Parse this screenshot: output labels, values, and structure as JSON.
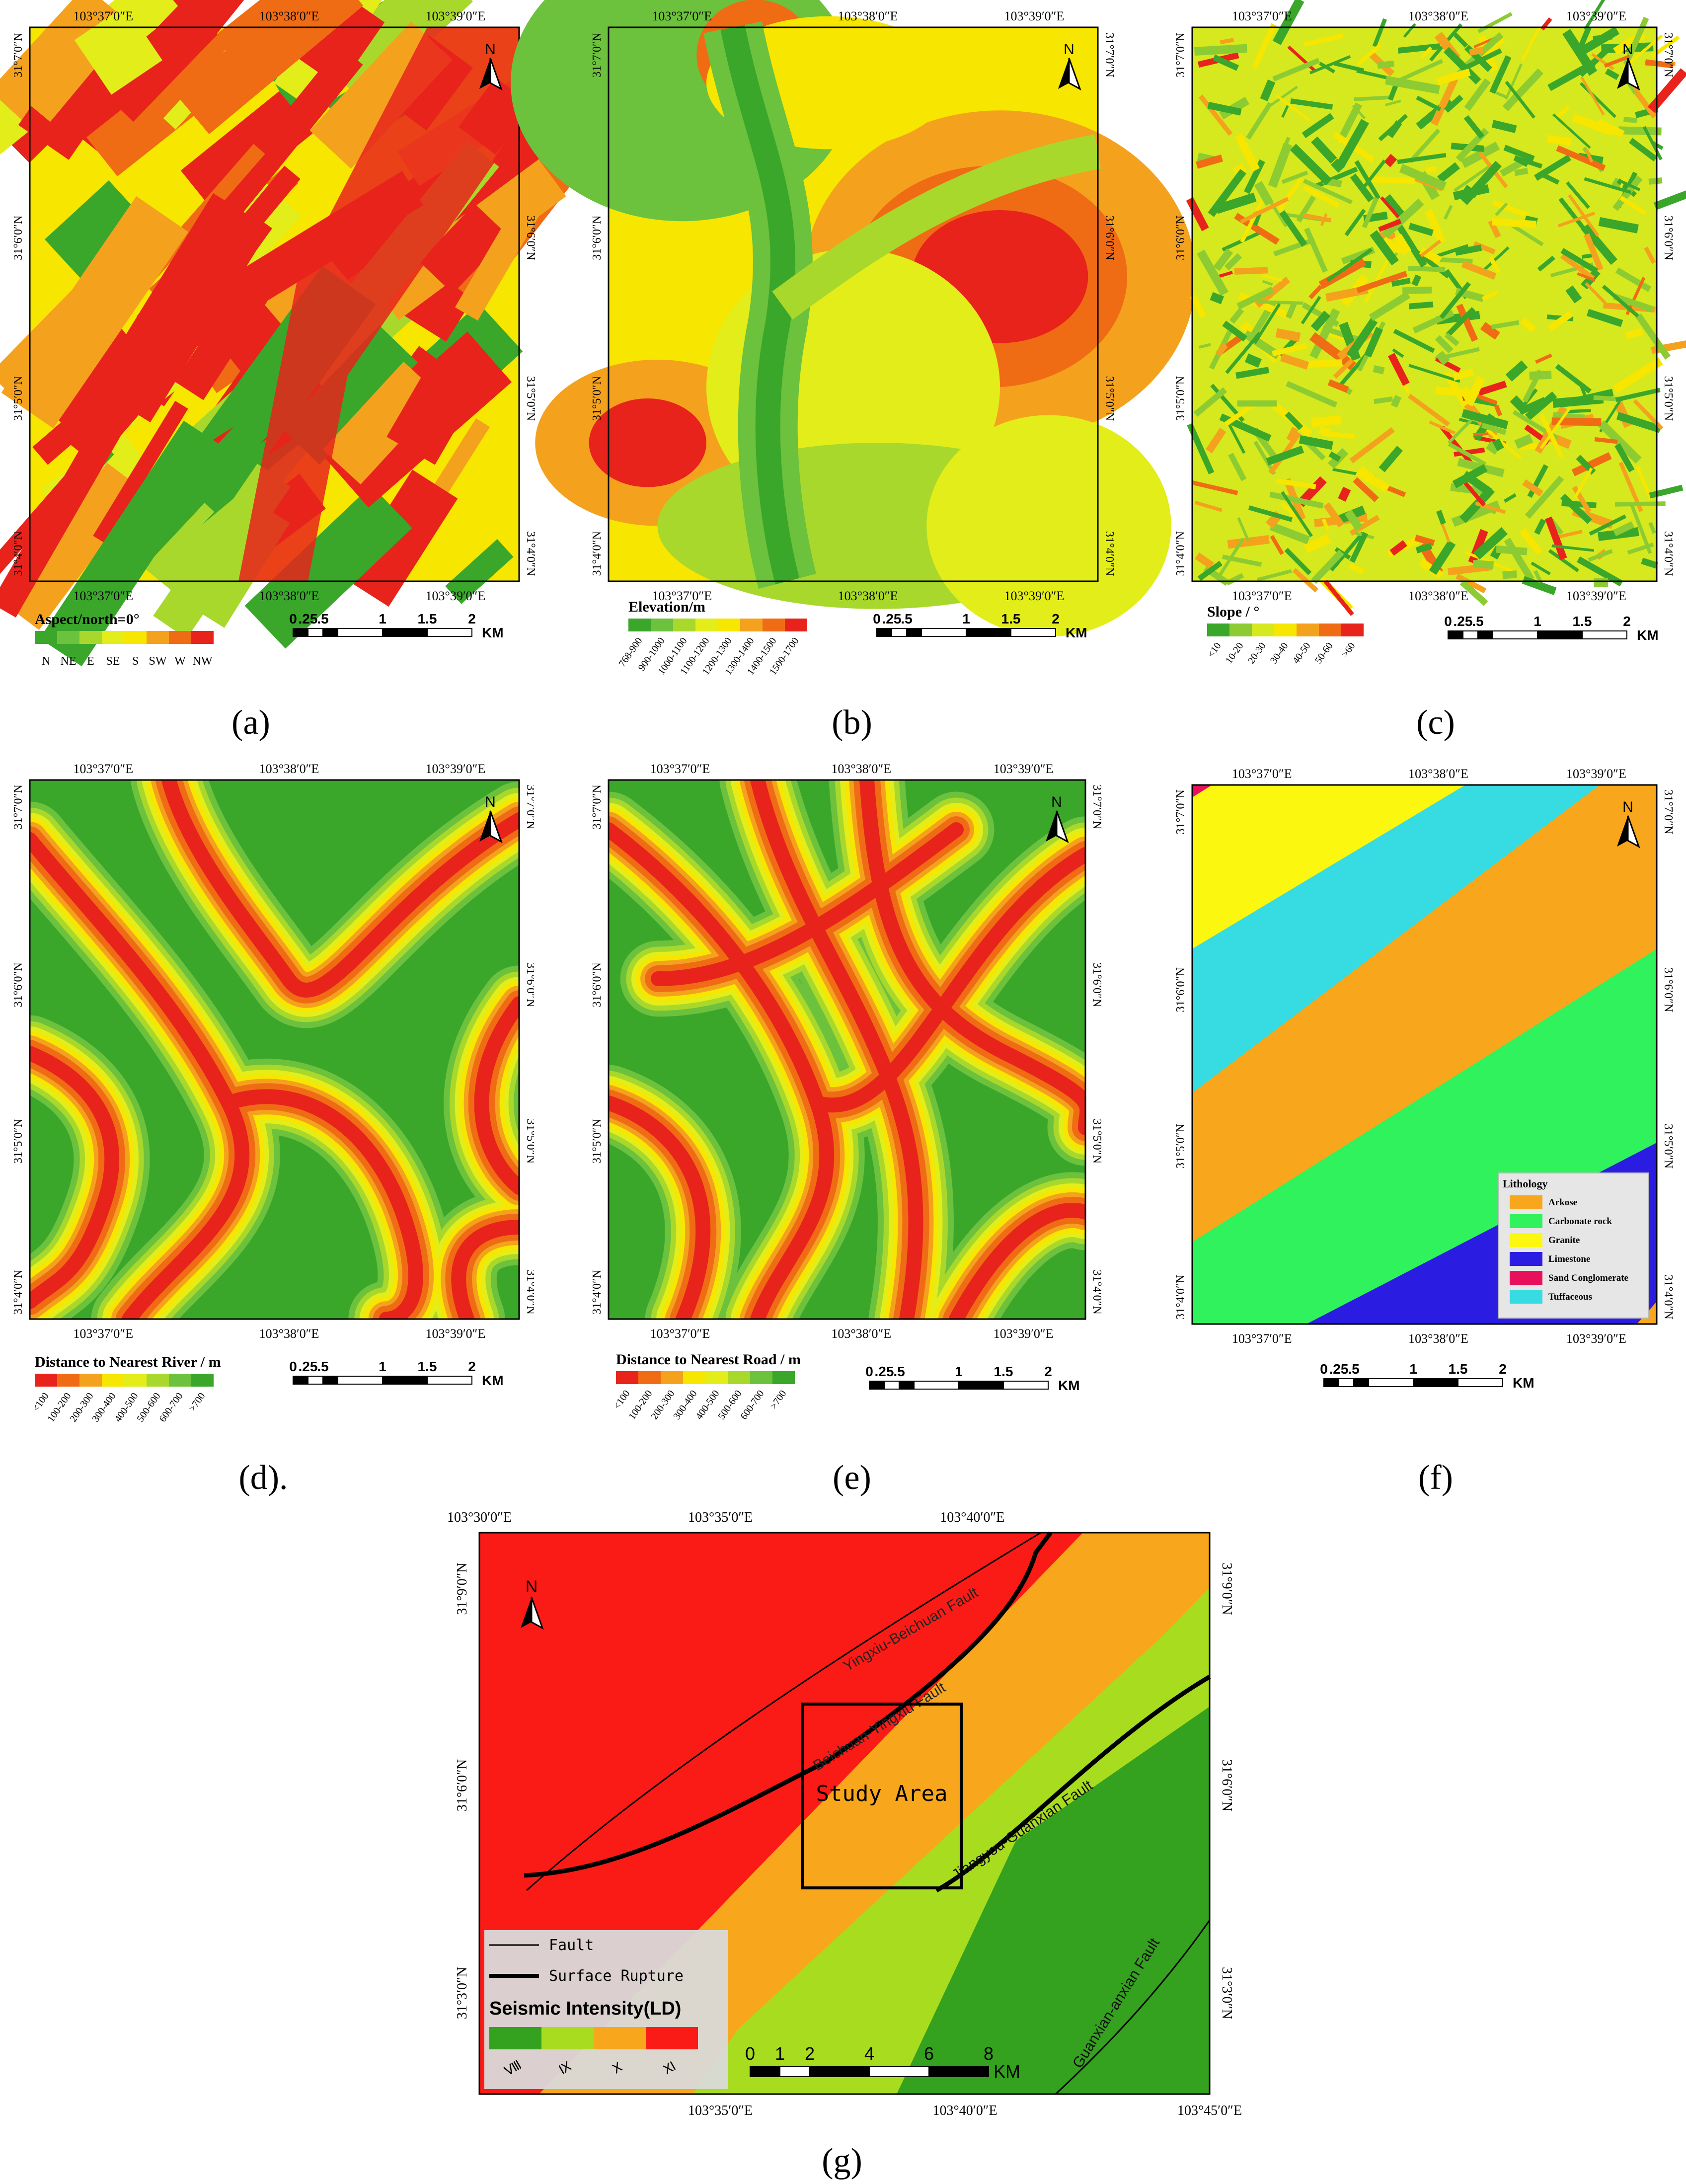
{
  "coords": {
    "lon_top": [
      "103°37′0″E",
      "103°38′0″E",
      "103°39′0″E"
    ],
    "lon_bottom": [
      "103°37′0″E",
      "103°38′0″E",
      "103°39′0″E"
    ],
    "lat": [
      "31°7′0″N",
      "31°6′0″N",
      "31°5′0″N",
      "31°4′0″N"
    ]
  },
  "north_label": "N",
  "scale": {
    "ticks": [
      "0",
      ".25",
      ".5",
      "1",
      "1.5",
      "2"
    ],
    "unit": "KM"
  },
  "panels": {
    "a": {
      "label": "(a)",
      "legend_title": "Aspect/north=0°",
      "classes": [
        "N",
        "NE",
        "E",
        "SE",
        "S",
        "SW",
        "W",
        "NW"
      ],
      "colors": [
        "#3aa72b",
        "#6cc13d",
        "#a8d82b",
        "#e2ed1a",
        "#f7e600",
        "#f4a21e",
        "#f06c14",
        "#e8231c"
      ]
    },
    "b": {
      "label": "(b)",
      "legend_title": "Elevation/m",
      "classes": [
        "768-900",
        "900-1000",
        "1000-1100",
        "1100-1200",
        "1200-1300",
        "1300-1400",
        "1400-1500",
        "1500-1700"
      ],
      "colors": [
        "#3aa72b",
        "#6cc13d",
        "#a8d82b",
        "#e2ed1a",
        "#f7e600",
        "#f4a21e",
        "#f06c14",
        "#e8231c"
      ]
    },
    "c": {
      "label": "(c)",
      "legend_title": "Slope / °",
      "classes": [
        "<10",
        "10-20",
        "20-30",
        "30-40",
        "40-50",
        "50-60",
        ">60"
      ],
      "colors": [
        "#3aa72b",
        "#8ccc32",
        "#d6e81e",
        "#f7e600",
        "#f4a21e",
        "#f06c14",
        "#e8231c"
      ]
    },
    "d": {
      "label": "(d).",
      "legend_title": "Distance to Nearest River / m",
      "classes": [
        "<100",
        "100-200",
        "200-300",
        "300-400",
        "400-500",
        "500-600",
        "600-700",
        ">700"
      ],
      "colors": [
        "#e8231c",
        "#f06c14",
        "#f4a21e",
        "#f7e600",
        "#e2ed1a",
        "#a8d82b",
        "#6cc13d",
        "#3aa72b"
      ]
    },
    "e": {
      "label": "(e)",
      "legend_title": "Distance to Nearest Road / m",
      "classes": [
        "<100",
        "100-200",
        "200-300",
        "300-400",
        "400-500",
        "500-600",
        "600-700",
        ">700"
      ],
      "colors": [
        "#e8231c",
        "#f06c14",
        "#f4a21e",
        "#f7e600",
        "#e2ed1a",
        "#a8d82b",
        "#6cc13d",
        "#3aa72b"
      ]
    },
    "f": {
      "label": "(f)",
      "legend_title": "Lithology",
      "classes": [
        "Arkose",
        "Carbonate rock",
        "Granite",
        "Limestone",
        "Sand Conglomerate",
        "Tuffaceous"
      ],
      "colors": [
        "#f8a61c",
        "#30f25c",
        "#fbf70e",
        "#2a1ce0",
        "#e8105a",
        "#37dbe2"
      ]
    },
    "g": {
      "label": "(g)",
      "lon_top": [
        "103°30′0″E",
        "103°35′0″E",
        "103°40′0″E"
      ],
      "lon_bottom": [
        "103°35′0″E",
        "103°40′0″E",
        "103°45′0″E"
      ],
      "lat": [
        "31°9′0″N",
        "31°6′0″N",
        "31°3′0″N"
      ],
      "faults": [
        "Yingxiu-Beichuan Fault",
        "Beichuan-Yingxiu Fault",
        "Jiangyou-Guanxian Fault",
        "Guanxian-anxian Fault"
      ],
      "study_area": "Study Area",
      "legend_fault": "Fault",
      "legend_rupture": "Surface Rupture",
      "legend_title": "Seismic Intensity(LD)",
      "classes": [
        "Ⅷ",
        "Ⅸ",
        "Ⅹ",
        "Ⅺ"
      ],
      "colors": [
        "#34a11f",
        "#a8dc1e",
        "#f8a61c",
        "#fb1b16"
      ],
      "scale_ticks": [
        "0",
        "1",
        "2",
        "4",
        "6",
        "8"
      ],
      "scale_unit": "KM"
    }
  }
}
